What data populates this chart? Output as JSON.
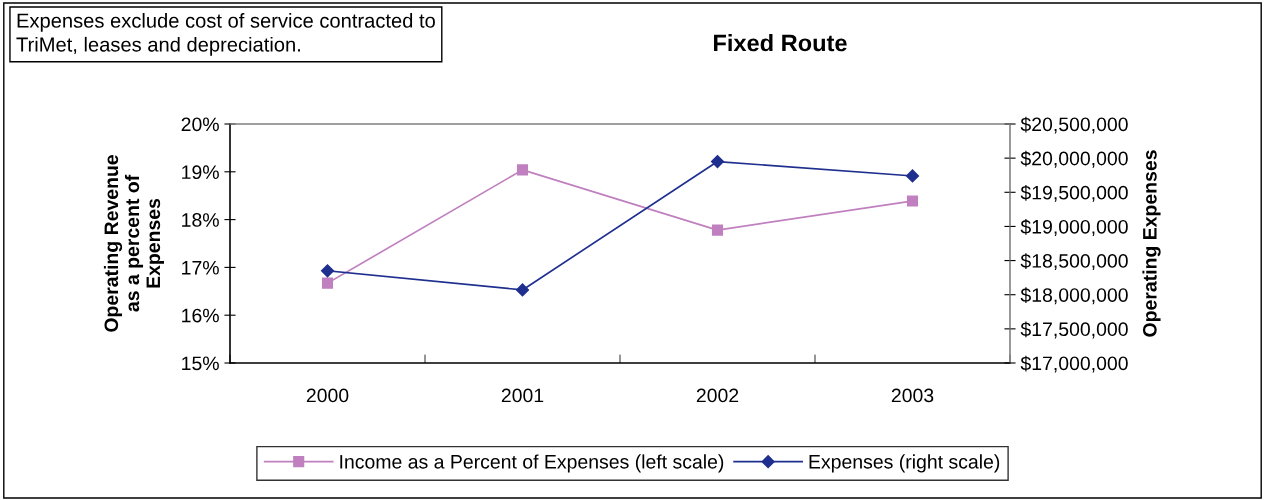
{
  "chart_data": {
    "type": "line",
    "title": "Fixed Route",
    "annotations": [
      "Expenses exclude cost of service contracted to\nTriMet, leases and depreciation."
    ],
    "ylabel": "Operating Revenue\nas a percent of\nExpenses",
    "y2label": "Operating Expenses",
    "categories": [
      "2000",
      "2001",
      "2002",
      "2003"
    ],
    "series": [
      {
        "name": "Income as a Percent of Expenses (left scale)",
        "color": "#c080c0",
        "marker": "square",
        "values": [
          16.67,
          19.04,
          17.78,
          18.39
        ]
      },
      {
        "name": "Expenses (right scale)",
        "color": "#1f2f8f",
        "marker": "diamond",
        "axis": "y2",
        "values": [
          18350000,
          18070000,
          19950000,
          19740000
        ]
      }
    ],
    "ylim": [
      15,
      20
    ],
    "yticks": [
      {
        "value": 15,
        "label": "15%"
      },
      {
        "value": 16,
        "label": "16%"
      },
      {
        "value": 17,
        "label": "17%"
      },
      {
        "value": 18,
        "label": "18%"
      },
      {
        "value": 19,
        "label": "19%"
      },
      {
        "value": 20,
        "label": "20%"
      }
    ],
    "y2lim": [
      17000000,
      20500000
    ],
    "y2ticks": [
      {
        "value": 17000000,
        "label": "$17,000,000"
      },
      {
        "value": 17500000,
        "label": "$17,500,000"
      },
      {
        "value": 18000000,
        "label": "$18,000,000"
      },
      {
        "value": 18500000,
        "label": "$18,500,000"
      },
      {
        "value": 19000000,
        "label": "$19,000,000"
      },
      {
        "value": 19500000,
        "label": "$19,500,000"
      },
      {
        "value": 20000000,
        "label": "$20,000,000"
      },
      {
        "value": 20500000,
        "label": "$20,500,000"
      }
    ],
    "grid": false,
    "legend": "bottom",
    "line_style": "solid"
  }
}
